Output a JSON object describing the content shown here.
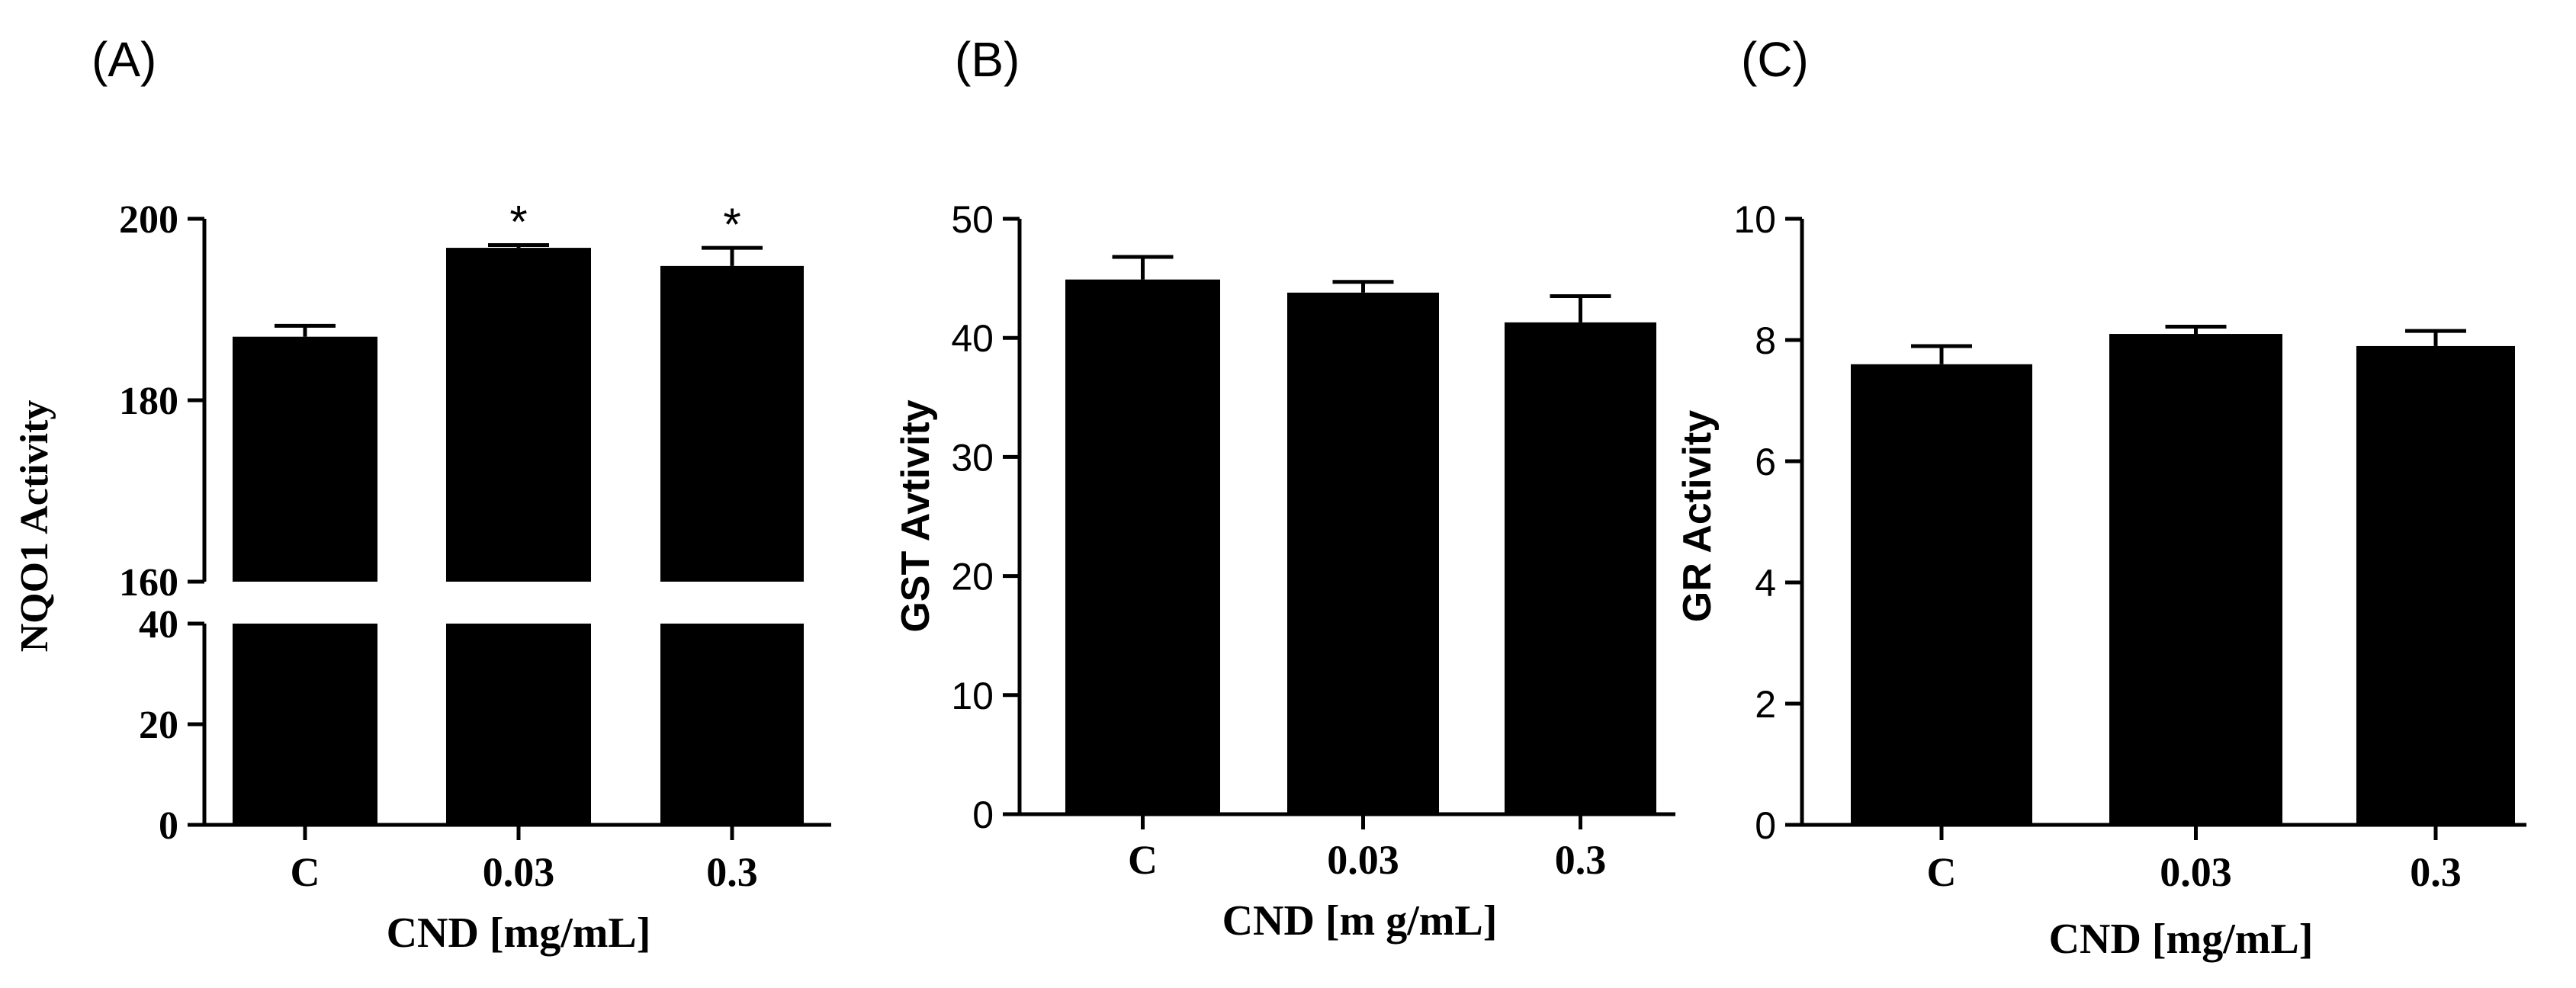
{
  "chart_data": [
    {
      "type": "bar",
      "panel_label": "(A)",
      "title": "",
      "xlabel": "CND [mg/mL]",
      "ylabel": "NQO1 Activity",
      "categories": [
        "C",
        "0.03",
        "0.3"
      ],
      "values": [
        187,
        196.8,
        194.8
      ],
      "errors": [
        1.2,
        0.3,
        2.0
      ],
      "significance": [
        "",
        "*",
        "*"
      ],
      "axis_break": {
        "lower_range": [
          0,
          40
        ],
        "lower_ticks": [
          "0",
          "20",
          "40"
        ],
        "upper_range": [
          160,
          200
        ],
        "upper_ticks": [
          "160",
          "180",
          "200"
        ]
      },
      "grid": false
    },
    {
      "type": "bar",
      "panel_label": "(B)",
      "title": "",
      "xlabel": "CND [m g/mL]",
      "ylabel": "GST Avtivity",
      "categories": [
        "C",
        "0.03",
        "0.3"
      ],
      "values": [
        44.9,
        43.8,
        41.3
      ],
      "errors": [
        1.9,
        0.9,
        2.2
      ],
      "significance": [
        "",
        "",
        ""
      ],
      "ylim": [
        0,
        50
      ],
      "ticks": [
        "0",
        "10",
        "20",
        "30",
        "40",
        "50"
      ],
      "grid": false
    },
    {
      "type": "bar",
      "panel_label": "(C)",
      "title": "",
      "xlabel": "CND [mg/mL]",
      "ylabel": "GR Activity",
      "categories": [
        "C",
        "0.03",
        "0.3"
      ],
      "values": [
        7.6,
        8.1,
        7.9
      ],
      "errors": [
        0.3,
        0.12,
        0.25
      ],
      "significance": [
        "",
        "",
        ""
      ],
      "ylim": [
        0,
        10
      ],
      "ticks": [
        "0",
        "2",
        "4",
        "6",
        "8",
        "10"
      ],
      "grid": false
    }
  ],
  "colors": {
    "bar": "#000000",
    "axis": "#000000",
    "background": "#ffffff"
  }
}
